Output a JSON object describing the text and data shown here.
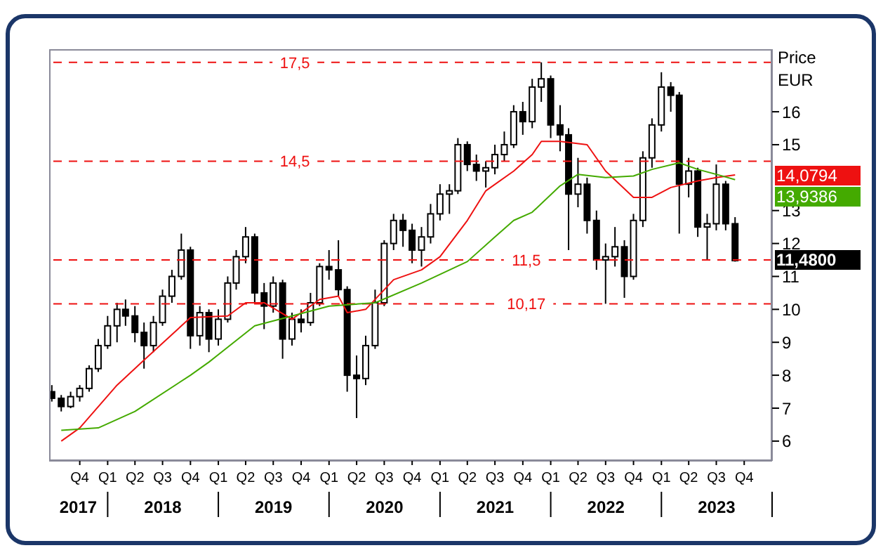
{
  "chart_data": {
    "type": "candlestick",
    "ylabel": "Price EUR",
    "color": "#000000",
    "x": [
      "2017-07",
      "2017-08",
      "2017-09",
      "2017-10",
      "2017-11",
      "2017-12",
      "2018-01",
      "2018-02",
      "2018-03",
      "2018-04",
      "2018-05",
      "2018-06",
      "2018-07",
      "2018-08",
      "2018-09",
      "2018-10",
      "2018-11",
      "2018-12",
      "2019-01",
      "2019-02",
      "2019-03",
      "2019-04",
      "2019-05",
      "2019-06",
      "2019-07",
      "2019-08",
      "2019-09",
      "2019-10",
      "2019-11",
      "2019-12",
      "2020-01",
      "2020-02",
      "2020-03",
      "2020-04",
      "2020-05",
      "2020-06",
      "2020-07",
      "2020-08",
      "2020-09",
      "2020-10",
      "2020-11",
      "2020-12",
      "2021-01",
      "2021-02",
      "2021-03",
      "2021-04",
      "2021-05",
      "2021-06",
      "2021-07",
      "2021-08",
      "2021-09",
      "2021-10",
      "2021-11",
      "2021-12",
      "2022-01",
      "2022-02",
      "2022-03",
      "2022-04",
      "2022-05",
      "2022-06",
      "2022-07",
      "2022-08",
      "2022-09",
      "2022-10",
      "2022-11",
      "2022-12",
      "2023-01",
      "2023-02",
      "2023-03",
      "2023-04",
      "2023-05",
      "2023-06",
      "2023-07",
      "2023-08",
      "2023-09"
    ],
    "ohlc": [
      [
        7.5,
        7.7,
        7.2,
        7.3
      ],
      [
        7.3,
        7.4,
        6.9,
        7.05
      ],
      [
        7.05,
        7.5,
        7.0,
        7.35
      ],
      [
        7.35,
        7.7,
        7.2,
        7.6
      ],
      [
        7.6,
        8.3,
        7.5,
        8.2
      ],
      [
        8.2,
        9.1,
        8.1,
        8.9
      ],
      [
        8.9,
        9.8,
        8.8,
        9.5
      ],
      [
        9.5,
        10.2,
        9.0,
        10.0
      ],
      [
        10.0,
        10.3,
        9.5,
        9.8
      ],
      [
        9.8,
        10.1,
        9.0,
        9.3
      ],
      [
        9.3,
        9.6,
        8.2,
        8.9
      ],
      [
        8.9,
        9.8,
        8.7,
        9.6
      ],
      [
        9.6,
        10.6,
        9.5,
        10.4
      ],
      [
        10.4,
        11.2,
        10.2,
        11.0
      ],
      [
        11.0,
        12.3,
        10.9,
        11.8
      ],
      [
        11.8,
        11.9,
        8.8,
        9.2
      ],
      [
        9.2,
        10.1,
        8.9,
        9.9
      ],
      [
        9.9,
        10.0,
        8.7,
        9.1
      ],
      [
        9.1,
        10.0,
        8.9,
        9.7
      ],
      [
        9.7,
        11.0,
        9.6,
        10.8
      ],
      [
        10.8,
        11.8,
        10.6,
        11.6
      ],
      [
        11.6,
        12.5,
        11.4,
        12.2
      ],
      [
        12.2,
        12.3,
        10.2,
        10.5
      ],
      [
        10.5,
        10.8,
        9.4,
        10.1
      ],
      [
        10.1,
        11.0,
        9.9,
        10.8
      ],
      [
        10.8,
        10.9,
        8.5,
        9.1
      ],
      [
        9.1,
        9.9,
        8.9,
        9.7
      ],
      [
        9.7,
        10.0,
        9.3,
        9.6
      ],
      [
        9.6,
        10.5,
        9.5,
        10.2
      ],
      [
        10.2,
        11.4,
        10.1,
        11.3
      ],
      [
        11.3,
        11.8,
        10.9,
        11.2
      ],
      [
        11.2,
        12.1,
        10.4,
        10.6
      ],
      [
        10.6,
        10.7,
        7.5,
        8.0
      ],
      [
        8.0,
        8.6,
        6.7,
        7.9
      ],
      [
        7.9,
        9.2,
        7.7,
        8.9
      ],
      [
        8.9,
        10.6,
        8.8,
        10.2
      ],
      [
        10.2,
        12.1,
        10.1,
        12.0
      ],
      [
        12.0,
        12.9,
        11.8,
        12.7
      ],
      [
        12.7,
        12.9,
        11.9,
        12.4
      ],
      [
        12.4,
        12.6,
        11.4,
        11.8
      ],
      [
        11.8,
        12.5,
        11.3,
        12.2
      ],
      [
        12.2,
        13.2,
        12.0,
        12.9
      ],
      [
        12.9,
        13.8,
        12.7,
        13.5
      ],
      [
        13.5,
        13.8,
        12.9,
        13.6
      ],
      [
        13.6,
        15.2,
        13.5,
        15.0
      ],
      [
        15.0,
        15.1,
        14.2,
        14.4
      ],
      [
        14.4,
        14.7,
        13.9,
        14.2
      ],
      [
        14.2,
        14.5,
        13.7,
        14.3
      ],
      [
        14.3,
        15.0,
        14.1,
        14.7
      ],
      [
        14.7,
        15.4,
        14.5,
        15.0
      ],
      [
        15.0,
        16.2,
        14.9,
        16.0
      ],
      [
        16.0,
        16.3,
        15.3,
        15.7
      ],
      [
        15.7,
        17.0,
        15.5,
        16.75
      ],
      [
        16.75,
        17.5,
        16.3,
        17.0
      ],
      [
        17.0,
        17.1,
        15.2,
        15.6
      ],
      [
        15.6,
        16.2,
        14.8,
        15.3
      ],
      [
        15.3,
        15.5,
        11.8,
        13.5
      ],
      [
        13.5,
        14.6,
        13.1,
        13.8
      ],
      [
        13.8,
        14.0,
        12.3,
        12.7
      ],
      [
        12.7,
        13.0,
        11.2,
        11.5
      ],
      [
        11.5,
        12.0,
        10.17,
        11.6
      ],
      [
        11.6,
        12.5,
        11.3,
        11.9
      ],
      [
        11.9,
        12.1,
        10.35,
        11.0
      ],
      [
        11.0,
        12.9,
        10.9,
        12.7
      ],
      [
        12.7,
        14.8,
        12.5,
        14.6
      ],
      [
        14.6,
        15.8,
        14.3,
        15.6
      ],
      [
        15.6,
        17.2,
        15.4,
        16.75
      ],
      [
        16.75,
        16.9,
        16.0,
        16.5
      ],
      [
        16.5,
        16.6,
        12.3,
        13.8
      ],
      [
        13.8,
        14.6,
        13.4,
        14.2
      ],
      [
        14.2,
        14.3,
        12.2,
        12.5
      ],
      [
        12.5,
        12.9,
        11.5,
        12.6
      ],
      [
        12.6,
        14.4,
        12.4,
        13.8
      ],
      [
        13.8,
        13.9,
        12.4,
        12.6
      ],
      [
        12.6,
        12.8,
        11.45,
        11.48
      ]
    ],
    "series": [
      {
        "type": "line",
        "color": "#ee1111",
        "x": [
          "2017-08",
          "2017-10",
          "2018-02",
          "2018-05",
          "2018-10",
          "2019-02",
          "2019-04",
          "2019-06",
          "2019-09",
          "2019-12",
          "2020-02",
          "2020-03",
          "2020-05",
          "2020-08",
          "2020-11",
          "2021-01",
          "2021-04",
          "2021-06",
          "2021-09",
          "2021-11",
          "2021-12",
          "2022-02",
          "2022-05",
          "2022-07",
          "2022-10",
          "2022-12",
          "2023-02",
          "2023-05",
          "2023-07",
          "2023-09"
        ],
        "values": [
          6.0,
          6.4,
          7.7,
          8.46,
          9.75,
          9.8,
          10.2,
          10.2,
          9.7,
          10.3,
          10.4,
          9.9,
          10.0,
          10.9,
          11.2,
          11.6,
          12.7,
          13.6,
          14.2,
          14.7,
          15.1,
          15.1,
          15.0,
          14.2,
          13.4,
          13.4,
          13.7,
          13.9,
          14.0,
          14.0794
        ]
      },
      {
        "type": "line",
        "color": "#44aa00",
        "x": [
          "2017-08",
          "2017-12",
          "2018-04",
          "2018-10",
          "2018-12",
          "2019-05",
          "2019-09",
          "2020-01",
          "2020-06",
          "2020-11",
          "2021-04",
          "2021-07",
          "2021-09",
          "2021-11",
          "2022-02",
          "2022-04",
          "2022-07",
          "2022-10",
          "2022-12",
          "2023-03",
          "2023-05",
          "2023-07",
          "2023-09"
        ],
        "values": [
          6.33,
          6.4,
          6.9,
          8.0,
          8.4,
          9.5,
          9.8,
          10.1,
          10.2,
          10.8,
          11.45,
          12.2,
          12.7,
          12.95,
          13.75,
          14.1,
          14.0,
          14.05,
          14.25,
          14.45,
          14.25,
          14.1,
          13.9386
        ]
      }
    ],
    "xlim": [
      "2017-06-22",
      "2024-01-01"
    ],
    "xticks": [
      {
        "value": "2017-10-01",
        "label": "Q4"
      },
      {
        "value": "2018-01-01",
        "label": "Q1"
      },
      {
        "value": "2018-04-01",
        "label": "Q2"
      },
      {
        "value": "2018-07-01",
        "label": "Q3"
      },
      {
        "value": "2018-10-01",
        "label": "Q4"
      },
      {
        "value": "2019-01-01",
        "label": "Q1"
      },
      {
        "value": "2019-04-01",
        "label": "Q2"
      },
      {
        "value": "2019-07-01",
        "label": "Q3"
      },
      {
        "value": "2019-10-01",
        "label": "Q4"
      },
      {
        "value": "2020-01-01",
        "label": "Q1"
      },
      {
        "value": "2020-04-01",
        "label": "Q2"
      },
      {
        "value": "2020-07-01",
        "label": "Q3"
      },
      {
        "value": "2020-10-01",
        "label": "Q4"
      },
      {
        "value": "2021-01-01",
        "label": "Q1"
      },
      {
        "value": "2021-04-01",
        "label": "Q2"
      },
      {
        "value": "2021-07-01",
        "label": "Q3"
      },
      {
        "value": "2021-10-01",
        "label": "Q4"
      },
      {
        "value": "2022-01-01",
        "label": "Q1"
      },
      {
        "value": "2022-04-01",
        "label": "Q2"
      },
      {
        "value": "2022-07-01",
        "label": "Q3"
      },
      {
        "value": "2022-10-01",
        "label": "Q4"
      },
      {
        "value": "2023-01-01",
        "label": "Q1"
      },
      {
        "value": "2023-04-01",
        "label": "Q2"
      },
      {
        "value": "2023-07-01",
        "label": "Q3"
      },
      {
        "value": "2023-10-01",
        "label": "Q4"
      }
    ],
    "x2lim": [
      "2017-06-22",
      "2024-01-01"
    ],
    "x2ticks": [
      {
        "value": "2017-09-26",
        "label": "2017"
      },
      {
        "value": "2018-01-01",
        "label": null
      },
      {
        "value": "2018-07-02",
        "label": "2018"
      },
      {
        "value": "2019-01-01",
        "label": null
      },
      {
        "value": "2019-07-02",
        "label": "2019"
      },
      {
        "value": "2020-01-01",
        "label": null
      },
      {
        "value": "2020-07-02",
        "label": "2020"
      },
      {
        "value": "2021-01-01",
        "label": null
      },
      {
        "value": "2021-07-02",
        "label": "2021"
      },
      {
        "value": "2022-01-01",
        "label": null
      },
      {
        "value": "2022-07-02",
        "label": "2022"
      },
      {
        "value": "2023-01-01",
        "label": null
      },
      {
        "value": "2023-07-02",
        "label": "2023"
      },
      {
        "value": "2024-01-01",
        "label": null
      }
    ],
    "ylim": [
      5.4,
      17.9
    ],
    "yticks": [
      6,
      7,
      8,
      9,
      10,
      11,
      12,
      13,
      15,
      16
    ],
    "ref_lines": [
      {
        "axis": "y",
        "value": 17.5,
        "label": "17,5",
        "color": "#ee1111",
        "line_style": "dashed"
      },
      {
        "axis": "y",
        "value": 14.5,
        "label": "14,5",
        "color": "#ee1111",
        "line_style": "dashed"
      },
      {
        "axis": "y",
        "value": 11.5,
        "label": "11,5",
        "color": "#ee1111",
        "line_style": "dashed"
      },
      {
        "axis": "y",
        "value": 10.17,
        "label": "10,17",
        "color": "#ee1111",
        "line_style": "dashed"
      }
    ],
    "annotations": [
      "14,0794",
      "13,9386",
      "11,4800"
    ]
  }
}
